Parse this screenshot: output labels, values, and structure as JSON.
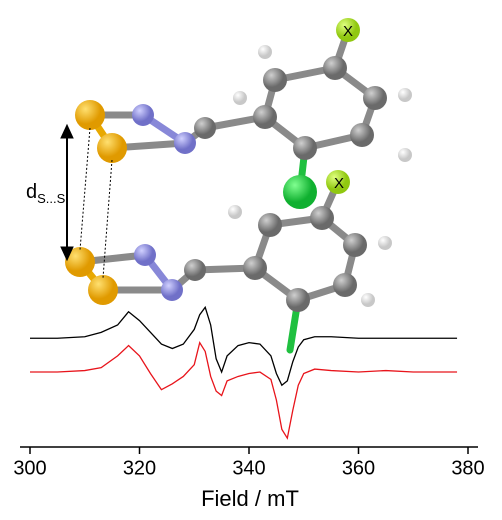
{
  "chart_data": {
    "type": "line",
    "xlabel": "Field / mT",
    "x": [
      300,
      305,
      310,
      313,
      316,
      318,
      320,
      322,
      324,
      326,
      328,
      330,
      331,
      332,
      333,
      334,
      335,
      336,
      338,
      340,
      342,
      344,
      345,
      346,
      347,
      348,
      349,
      350,
      352,
      355,
      360,
      365,
      370,
      375,
      378
    ],
    "series": [
      {
        "color": "#000000",
        "values": [
          7.4,
          7.4,
          7.5,
          7.8,
          8.3,
          9.2,
          8.6,
          7.8,
          7.0,
          6.7,
          7.0,
          8.0,
          9.0,
          9.5,
          8.3,
          6.0,
          5.1,
          6.2,
          6.9,
          7.1,
          7.0,
          6.2,
          5.0,
          4.2,
          4.5,
          5.8,
          6.8,
          7.3,
          7.5,
          7.5,
          7.4,
          7.4,
          7.4,
          7.4,
          7.4
        ]
      },
      {
        "color": "#e8141b",
        "values": [
          5.1,
          5.1,
          5.2,
          5.4,
          6.2,
          6.9,
          6.2,
          5.0,
          3.9,
          4.3,
          4.8,
          5.6,
          7.1,
          6.5,
          4.8,
          3.8,
          3.5,
          4.5,
          4.8,
          5.0,
          5.1,
          4.6,
          3.2,
          1.2,
          0.6,
          2.5,
          4.2,
          5.0,
          5.3,
          5.2,
          5.1,
          5.2,
          5.1,
          5.1,
          5.1
        ]
      }
    ],
    "xlim": [
      300,
      380
    ],
    "xticks": [
      300,
      320,
      340,
      360,
      380
    ],
    "ylim": [
      0,
      10
    ],
    "annotations": [
      "X",
      "X"
    ],
    "distance_label": {
      "main": "d",
      "sub": "S...S"
    }
  }
}
